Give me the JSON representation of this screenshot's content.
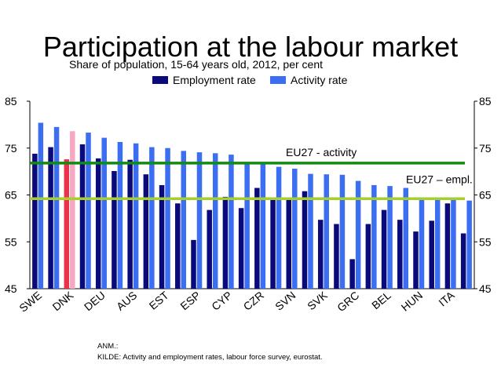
{
  "chart_data": {
    "type": "bar",
    "title": "Participation at the labour market",
    "subtitle": "Share of population, 15-64 years old, 2012, per cent",
    "ylim": [
      45,
      85
    ],
    "yticks": [
      45,
      55,
      65,
      75,
      85
    ],
    "x_tick_labels": [
      "SWE",
      "DNK",
      "DEU",
      "AUS",
      "EST",
      "ESP",
      "CYP",
      "CZR",
      "SVN",
      "SVK",
      "GRC",
      "BEL",
      "HUN",
      "ITA"
    ],
    "legend_position": "top",
    "grid": false,
    "series": [
      {
        "name": "Employment rate",
        "color": "#0a0a7a",
        "values": [
          73.8,
          75.2,
          72.6,
          75.8,
          72.8,
          70.1,
          72.5,
          69.4,
          67.1,
          63.2,
          55.4,
          61.8,
          64.6,
          62.2,
          66.5,
          64.2,
          64.1,
          65.8,
          59.7,
          58.8,
          51.3,
          58.8,
          61.8,
          59.7,
          57.2,
          59.5,
          63.2,
          56.8
        ]
      },
      {
        "name": "Activity rate",
        "color": "#3b6ef0",
        "values": [
          80.4,
          79.5,
          78.6,
          78.3,
          77.2,
          76.3,
          76.0,
          75.2,
          75.0,
          74.4,
          74.1,
          73.9,
          73.6,
          71.8,
          71.6,
          71.0,
          70.6,
          69.5,
          69.4,
          69.3,
          68.0,
          67.1,
          66.9,
          66.5,
          64.5,
          64.3,
          64.1,
          63.8
        ]
      }
    ],
    "highlight": {
      "index": 2,
      "employment_color": "#e8334b",
      "activity_color": "#f7a8c0"
    },
    "reference_lines": [
      {
        "label": "EU27 - activity",
        "value": 71.8,
        "color": "#138a13"
      },
      {
        "label": "EU27 – empl.",
        "value": 64.2,
        "color": "#a6cf2a"
      }
    ]
  },
  "notes": {
    "anm": "ANM.:",
    "source": "KILDE: Activity and employment rates, labour force survey, eurostat."
  }
}
